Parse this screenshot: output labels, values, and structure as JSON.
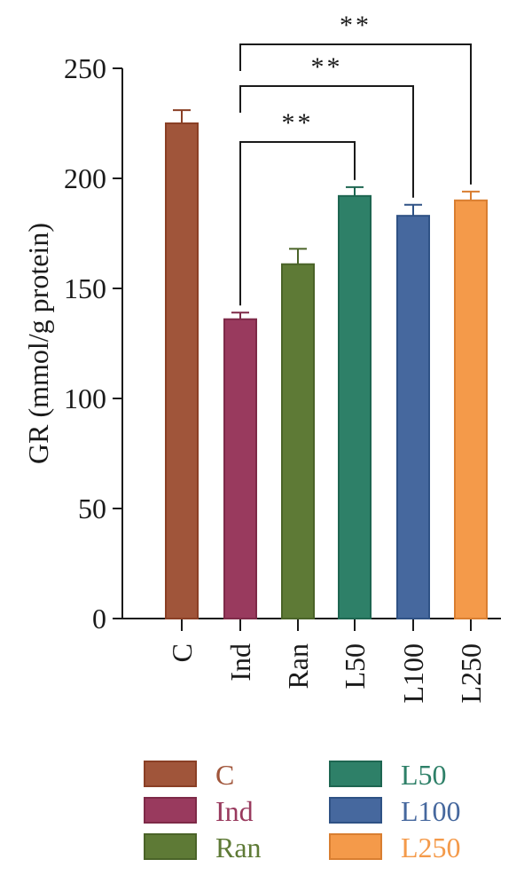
{
  "chart_data": {
    "type": "bar",
    "ylabel": "GR (mmol/g protein)",
    "ylim": [
      0,
      250
    ],
    "yticks": [
      0,
      50,
      100,
      150,
      200,
      250
    ],
    "categories": [
      "C",
      "Ind",
      "Ran",
      "L50",
      "L100",
      "L250"
    ],
    "values": [
      225,
      136,
      161,
      192,
      183,
      190
    ],
    "errors": [
      6,
      3,
      7,
      4,
      5,
      4
    ],
    "colors": [
      "#A0553A",
      "#993A5E",
      "#5E7A36",
      "#2E8068",
      "#46689E",
      "#F49A4A"
    ],
    "edge_colors": [
      "#8A3F25",
      "#7E2A48",
      "#4A6328",
      "#1E6651",
      "#2F5285",
      "#D97E30"
    ],
    "legend": {
      "position": "bottom",
      "entries": [
        "C",
        "Ind",
        "Ran",
        "L50",
        "L100",
        "L250"
      ]
    },
    "significance": [
      {
        "from": "Ind",
        "to": "L50",
        "label": "**"
      },
      {
        "from": "Ind",
        "to": "L100",
        "label": "**"
      },
      {
        "from": "Ind",
        "to": "L250",
        "label": "**"
      }
    ]
  }
}
